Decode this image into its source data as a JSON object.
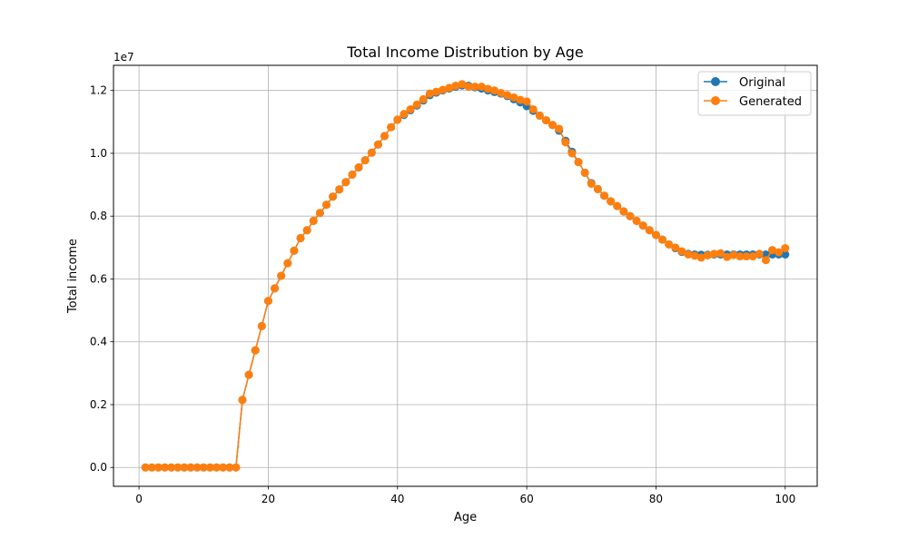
{
  "chart_data": {
    "type": "line",
    "title": "Total Income Distribution by Age",
    "xlabel": "Age",
    "ylabel": "Total income",
    "y_scale_label": "1e7",
    "xlim": [
      -3.95,
      104.95
    ],
    "ylim": [
      -0.06,
      1.28
    ],
    "y_multiplier": 10000000,
    "x_ticks": [
      0,
      20,
      40,
      60,
      80,
      100
    ],
    "x_tick_labels": [
      "0",
      "20",
      "40",
      "60",
      "80",
      "100"
    ],
    "y_ticks": [
      0.0,
      0.2,
      0.4,
      0.6,
      0.8,
      1.0,
      1.2
    ],
    "y_tick_labels": [
      "0.0",
      "0.2",
      "0.4",
      "0.6",
      "0.8",
      "1.0",
      "1.2"
    ],
    "grid": true,
    "legend_position": "top-right",
    "x": [
      1,
      2,
      3,
      4,
      5,
      6,
      7,
      8,
      9,
      10,
      11,
      12,
      13,
      14,
      15,
      16,
      17,
      18,
      19,
      20,
      21,
      22,
      23,
      24,
      25,
      26,
      27,
      28,
      29,
      30,
      31,
      32,
      33,
      34,
      35,
      36,
      37,
      38,
      39,
      40,
      41,
      42,
      43,
      44,
      45,
      46,
      47,
      48,
      49,
      50,
      51,
      52,
      53,
      54,
      55,
      56,
      57,
      58,
      59,
      60,
      61,
      62,
      63,
      64,
      65,
      66,
      67,
      68,
      69,
      70,
      71,
      72,
      73,
      74,
      75,
      76,
      77,
      78,
      79,
      80,
      81,
      82,
      83,
      84,
      85,
      86,
      87,
      88,
      89,
      90,
      91,
      92,
      93,
      94,
      95,
      96,
      97,
      98,
      99,
      100
    ],
    "series": [
      {
        "name": "Original",
        "color": "#1f77b4",
        "values": [
          0,
          0,
          0,
          0,
          0,
          0,
          0,
          0,
          0,
          0,
          0,
          0,
          0,
          0,
          0,
          0.215,
          0.295,
          0.373,
          0.45,
          0.53,
          0.57,
          0.61,
          0.65,
          0.69,
          0.73,
          0.755,
          0.785,
          0.81,
          0.836,
          0.862,
          0.885,
          0.908,
          0.932,
          0.955,
          0.978,
          1.002,
          1.028,
          1.055,
          1.083,
          1.107,
          1.122,
          1.137,
          1.152,
          1.168,
          1.185,
          1.193,
          1.2,
          1.206,
          1.212,
          1.216,
          1.215,
          1.21,
          1.206,
          1.2,
          1.195,
          1.19,
          1.182,
          1.172,
          1.162,
          1.15,
          1.135,
          1.12,
          1.105,
          1.09,
          1.072,
          1.04,
          1.005,
          0.972,
          0.938,
          0.905,
          0.886,
          0.865,
          0.847,
          0.832,
          0.815,
          0.8,
          0.785,
          0.77,
          0.755,
          0.74,
          0.725,
          0.71,
          0.698,
          0.686,
          0.68,
          0.678,
          0.677,
          0.677,
          0.678,
          0.678,
          0.678,
          0.678,
          0.678,
          0.678,
          0.678,
          0.678,
          0.678,
          0.678,
          0.678,
          0.678
        ]
      },
      {
        "name": "Generated",
        "color": "#ff7f0e",
        "values": [
          0,
          0,
          0,
          0,
          0,
          0,
          0,
          0,
          0,
          0,
          0,
          0,
          0,
          0,
          0,
          0.215,
          0.295,
          0.373,
          0.45,
          0.53,
          0.57,
          0.61,
          0.65,
          0.69,
          0.73,
          0.755,
          0.785,
          0.81,
          0.836,
          0.862,
          0.885,
          0.908,
          0.932,
          0.955,
          0.978,
          1.002,
          1.028,
          1.055,
          1.083,
          1.107,
          1.125,
          1.14,
          1.155,
          1.172,
          1.19,
          1.196,
          1.202,
          1.208,
          1.215,
          1.22,
          1.212,
          1.212,
          1.212,
          1.205,
          1.2,
          1.192,
          1.185,
          1.178,
          1.17,
          1.165,
          1.14,
          1.12,
          1.105,
          1.09,
          1.078,
          1.035,
          1.0,
          0.972,
          0.938,
          0.903,
          0.886,
          0.865,
          0.847,
          0.832,
          0.815,
          0.8,
          0.785,
          0.77,
          0.755,
          0.74,
          0.725,
          0.71,
          0.7,
          0.688,
          0.678,
          0.674,
          0.668,
          0.675,
          0.68,
          0.682,
          0.67,
          0.676,
          0.672,
          0.672,
          0.672,
          0.68,
          0.66,
          0.692,
          0.685,
          0.698
        ]
      }
    ]
  }
}
